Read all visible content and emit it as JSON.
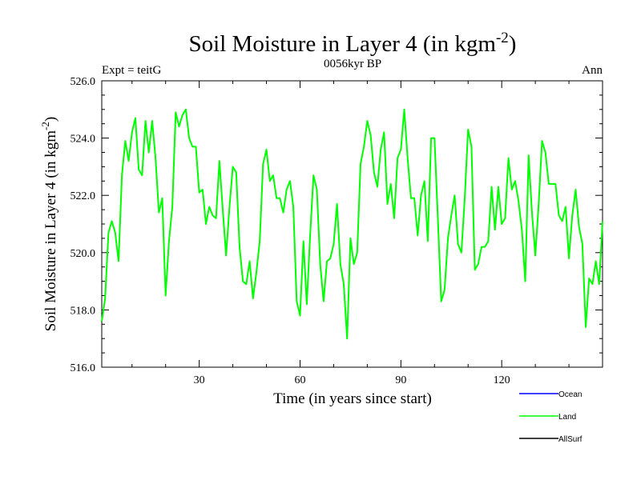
{
  "chart_data": {
    "type": "line",
    "title": "Soil Moisture in Layer 4 (in kgm",
    "title_sup": "-2",
    "title_close": ")",
    "subtitle_left": "Expt = teitG",
    "subtitle_center": "0056kyr BP",
    "subtitle_right": "Ann",
    "xlabel": "Time (in years since start)",
    "ylabel": "Soil Moisture in Layer 4 (in kgm",
    "ylabel_sup": "-2",
    "ylabel_close": ")",
    "xlim": [
      1,
      150
    ],
    "ylim": [
      516.0,
      526.0
    ],
    "x_ticks": [
      30,
      60,
      90,
      120
    ],
    "y_ticks": [
      "516.0",
      "518.0",
      "520.0",
      "522.0",
      "524.0",
      "526.0"
    ],
    "legend_position": "bottom-right",
    "legend": [
      {
        "name": "Ocean",
        "color": "#0000ff"
      },
      {
        "name": "Land",
        "color": "#00ff00"
      },
      {
        "name": "AllSurf",
        "color": "#000000"
      }
    ],
    "series": [
      {
        "name": "Land",
        "color": "#00ff00",
        "x_start": 1,
        "x_step": 1,
        "values": [
          517.6,
          518.4,
          520.7,
          521.1,
          520.7,
          519.7,
          522.7,
          523.9,
          523.2,
          524.2,
          524.7,
          522.9,
          522.7,
          524.6,
          523.5,
          524.6,
          523.3,
          521.4,
          521.9,
          518.5,
          520.4,
          521.6,
          524.9,
          524.4,
          524.8,
          525.0,
          524.0,
          523.7,
          523.7,
          522.1,
          522.2,
          521.0,
          521.6,
          521.3,
          521.2,
          523.2,
          521.5,
          519.9,
          521.6,
          523.0,
          522.8,
          520.2,
          519.0,
          518.9,
          519.7,
          518.4,
          519.3,
          520.4,
          523.1,
          523.6,
          522.5,
          522.7,
          521.9,
          521.9,
          521.4,
          522.2,
          522.5,
          521.6,
          518.3,
          517.8,
          520.4,
          518.2,
          520.6,
          522.7,
          522.2,
          519.6,
          518.3,
          519.7,
          519.8,
          520.3,
          521.7,
          519.6,
          518.9,
          517.0,
          520.5,
          519.6,
          520.0,
          523.1,
          523.7,
          524.6,
          524.1,
          522.8,
          522.3,
          523.6,
          524.2,
          521.7,
          522.4,
          521.2,
          523.3,
          523.6,
          525.0,
          523.3,
          521.9,
          521.9,
          520.6,
          522.0,
          522.5,
          520.4,
          524.0,
          524.0,
          521.2,
          518.3,
          518.7,
          520.5,
          521.3,
          522.0,
          520.3,
          520.0,
          521.9,
          524.3,
          523.7,
          519.4,
          519.6,
          520.2,
          520.2,
          520.4,
          522.3,
          520.8,
          522.3,
          521.0,
          521.2,
          523.3,
          522.2,
          522.5,
          521.8,
          520.8,
          519.0,
          523.4,
          521.4,
          519.9,
          521.7,
          523.9,
          523.5,
          522.4,
          522.4,
          522.4,
          521.3,
          521.1,
          521.6,
          519.8,
          521.3,
          522.2,
          520.9,
          520.3,
          517.4,
          519.1,
          518.9,
          519.7,
          518.9,
          521.1
        ]
      }
    ]
  }
}
